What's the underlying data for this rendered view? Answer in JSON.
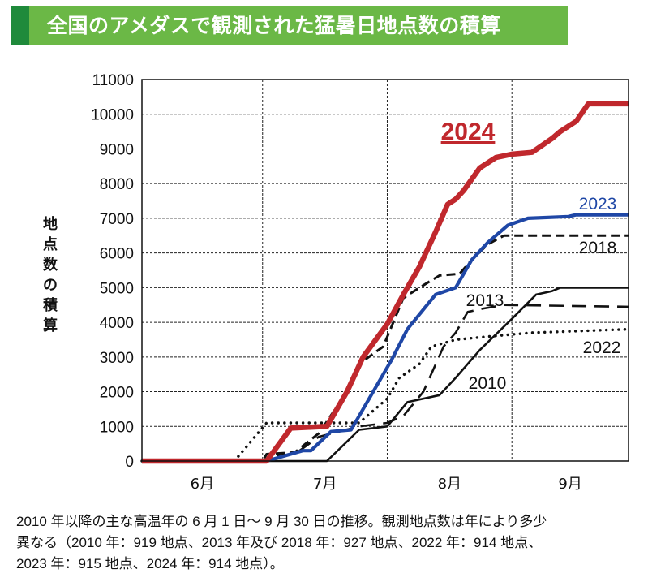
{
  "chart_data": {
    "type": "line",
    "title": "全国のアメダスで観測された猛暑日地点数の積算",
    "ylabel": "地点数の積算",
    "xlabel": "",
    "ylim": [
      0,
      11000
    ],
    "yticks": [
      "0",
      "1000",
      "2000",
      "3000",
      "4000",
      "5000",
      "6000",
      "7000",
      "8000",
      "9000",
      "10000",
      "11000"
    ],
    "xlim": [
      "6/1",
      "9/30"
    ],
    "xticks": [
      "6月",
      "7月",
      "8月",
      "9月"
    ],
    "grid": true,
    "series": [
      {
        "name": "2022",
        "color": "#111111",
        "style": "dotted",
        "points": [
          [
            "6/1",
            0
          ],
          [
            "6/24",
            0
          ],
          [
            "7/2",
            1100
          ],
          [
            "7/17",
            1100
          ],
          [
            "7/25",
            1100
          ],
          [
            "8/1",
            1800
          ],
          [
            "8/4",
            2400
          ],
          [
            "8/9",
            2800
          ],
          [
            "8/12",
            3300
          ],
          [
            "8/18",
            3500
          ],
          [
            "8/27",
            3600
          ],
          [
            "9/6",
            3700
          ],
          [
            "9/30",
            3800
          ]
        ]
      },
      {
        "name": "2013",
        "color": "#111111",
        "style": "longdash",
        "points": [
          [
            "6/1",
            0
          ],
          [
            "7/2",
            0
          ],
          [
            "7/4",
            150
          ],
          [
            "7/9",
            200
          ],
          [
            "7/15",
            700
          ],
          [
            "7/25",
            1000
          ],
          [
            "8/1",
            1100
          ],
          [
            "8/5",
            1300
          ],
          [
            "8/10",
            2000
          ],
          [
            "8/15",
            3300
          ],
          [
            "8/18",
            3700
          ],
          [
            "8/21",
            4300
          ],
          [
            "8/25",
            4400
          ],
          [
            "8/30",
            4500
          ],
          [
            "9/30",
            4450
          ]
        ]
      },
      {
        "name": "2018",
        "color": "#111111",
        "style": "dashed",
        "points": [
          [
            "6/1",
            0
          ],
          [
            "7/1",
            0
          ],
          [
            "7/2",
            200
          ],
          [
            "7/9",
            250
          ],
          [
            "7/15",
            800
          ],
          [
            "7/22",
            2000
          ],
          [
            "7/25",
            2800
          ],
          [
            "7/31",
            3300
          ],
          [
            "8/5",
            4700
          ],
          [
            "8/9",
            5000
          ],
          [
            "8/14",
            5350
          ],
          [
            "8/19",
            5400
          ],
          [
            "8/22",
            5800
          ],
          [
            "8/26",
            6250
          ],
          [
            "8/30",
            6500
          ],
          [
            "9/30",
            6500
          ]
        ]
      },
      {
        "name": "2010",
        "color": "#111111",
        "style": "solid",
        "points": [
          [
            "6/1",
            0
          ],
          [
            "7/17",
            0
          ],
          [
            "7/25",
            900
          ],
          [
            "8/1",
            1000
          ],
          [
            "8/6",
            1700
          ],
          [
            "8/14",
            1900
          ],
          [
            "8/18",
            2400
          ],
          [
            "8/24",
            3200
          ],
          [
            "9/1",
            4100
          ],
          [
            "9/7",
            4800
          ],
          [
            "9/11",
            4900
          ],
          [
            "9/13",
            5000
          ],
          [
            "9/30",
            5000
          ]
        ]
      },
      {
        "name": "2023",
        "color": "#1f47a6",
        "style": "solid",
        "points": [
          [
            "6/1",
            0
          ],
          [
            "7/2",
            0
          ],
          [
            "7/11",
            300
          ],
          [
            "7/13",
            300
          ],
          [
            "7/18",
            850
          ],
          [
            "7/23",
            900
          ],
          [
            "7/25",
            1300
          ],
          [
            "7/30",
            2300
          ],
          [
            "8/2",
            2900
          ],
          [
            "8/6",
            3800
          ],
          [
            "8/13",
            4800
          ],
          [
            "8/18",
            5000
          ],
          [
            "8/22",
            5800
          ],
          [
            "8/26",
            6300
          ],
          [
            "8/31",
            6800
          ],
          [
            "9/5",
            7000
          ],
          [
            "9/15",
            7050
          ],
          [
            "9/17",
            7100
          ],
          [
            "9/30",
            7100
          ]
        ]
      },
      {
        "name": "2024",
        "color": "#c0282d",
        "style": "bold",
        "points": [
          [
            "6/1",
            0
          ],
          [
            "7/2",
            0
          ],
          [
            "7/8",
            950
          ],
          [
            "7/17",
            1000
          ],
          [
            "7/22",
            2000
          ],
          [
            "7/26",
            3000
          ],
          [
            "8/1",
            3950
          ],
          [
            "8/5",
            4800
          ],
          [
            "8/9",
            5600
          ],
          [
            "8/13",
            6600
          ],
          [
            "8/16",
            7400
          ],
          [
            "8/18",
            7550
          ],
          [
            "8/20",
            7800
          ],
          [
            "8/24",
            8450
          ],
          [
            "8/28",
            8750
          ],
          [
            "9/1",
            8850
          ],
          [
            "9/6",
            8900
          ],
          [
            "9/11",
            9300
          ],
          [
            "9/13",
            9500
          ],
          [
            "9/17",
            9800
          ],
          [
            "9/20",
            10300
          ],
          [
            "9/30",
            10300
          ]
        ]
      }
    ]
  },
  "caption": {
    "line1": "2010 年以降の主な高温年の 6 月 1 日～ 9 月 30 日の推移。観測地点数は年により多少",
    "line2": "異なる（2010 年：919 地点、2013 年及び 2018 年：927 地点、2022 年：914 地点、",
    "line3": "2023 年：915 地点、2024 年：914 地点）。"
  }
}
